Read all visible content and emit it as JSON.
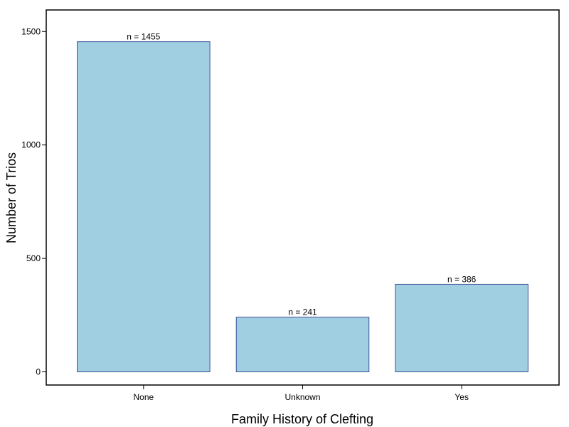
{
  "chart_data": {
    "type": "bar",
    "categories": [
      "None",
      "Unknown",
      "Yes"
    ],
    "values": [
      1455,
      241,
      386
    ],
    "data_labels": [
      "n =  1455",
      "n =  241",
      "n =  386"
    ],
    "xlabel": "Family History of Clefting",
    "ylabel": "Number of Trios",
    "yticks": [
      0,
      500,
      1000,
      1500
    ],
    "ylim": [
      -58,
      1595
    ],
    "grid": false,
    "bar_color": "#9fcfe0",
    "bar_edge_color": "#3b4f9a"
  }
}
